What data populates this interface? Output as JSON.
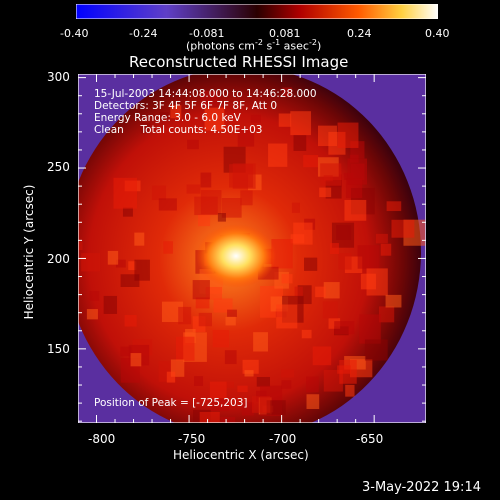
{
  "chart_data": {
    "type": "heatmap",
    "title": "Reconstructed RHESSI Image",
    "xlabel": "Heliocentric X (arcsec)",
    "ylabel": "Heliocentric Y (arcsec)",
    "xlim": [
      -810,
      -622
    ],
    "ylim": [
      109,
      302
    ],
    "x_ticks": [
      "-800",
      "-750",
      "-700",
      "-650"
    ],
    "y_ticks": [
      "300",
      "250",
      "200",
      "150"
    ],
    "peak": [
      -725,
      203
    ],
    "colorbar": {
      "range": [
        -0.4,
        0.4
      ],
      "tick_labels": [
        "-0.40",
        "-0.24",
        "-0.081",
        "0.081",
        "0.24",
        "0.40"
      ],
      "label_prefix": "(photons cm",
      "label_exp1": "-2",
      "label_mid": " s",
      "label_exp2": "-1",
      "label_mid2": " asec",
      "label_exp3": "-2",
      "label_suffix": ")"
    },
    "annotations": {
      "time": "15-Jul-2003 14:44:08.000 to 14:46:28.000",
      "detectors": "Detectors: 3F 4F 5F 6F 7F 8F, Att 0",
      "energy": "Energy Range: 3.0 - 6.0 keV",
      "clean": "Clean     Total counts: 4.50E+03",
      "peak_text": "Position of Peak = [-725,203]"
    }
  },
  "footer": {
    "date": "3-May-2022 19:14"
  }
}
